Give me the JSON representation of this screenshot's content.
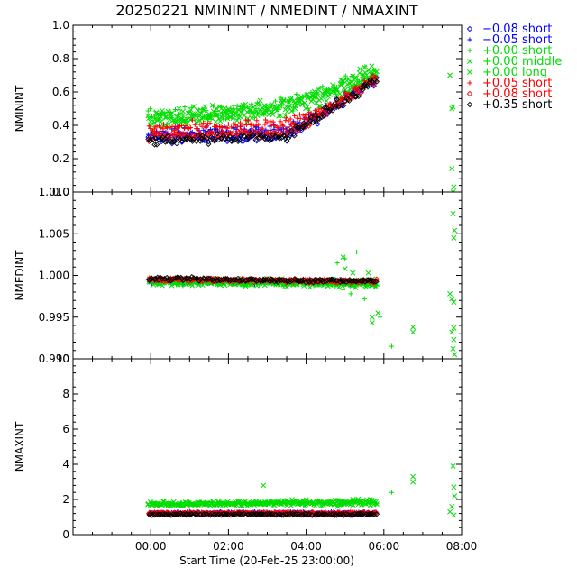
{
  "chart_data": {
    "type": "scatter",
    "title": "20250221  NMININT  /  NMEDINT  /  NMAXINT",
    "xlabel": "Start Time (20-Feb-25 23:00:00)",
    "x_unit": "hours since start time",
    "xlim": [
      -1.0,
      9.0
    ],
    "xticks": [
      {
        "value": 1.0,
        "label": "00:00"
      },
      {
        "value": 3.0,
        "label": "02:00"
      },
      {
        "value": 5.0,
        "label": "04:00"
      },
      {
        "value": 7.0,
        "label": "06:00"
      },
      {
        "value": 9.0,
        "label": "08:00"
      }
    ],
    "panels": [
      {
        "ylabel": "NMININT",
        "ylim": [
          0.0,
          1.0
        ],
        "yticks": [
          "0.0",
          "0.2",
          "0.4",
          "0.6",
          "0.8",
          "1.0"
        ],
        "ytick_values": [
          0.0,
          0.2,
          0.4,
          0.6,
          0.8,
          1.0
        ]
      },
      {
        "ylabel": "NMEDINT",
        "ylim": [
          0.99,
          1.01
        ],
        "yticks": [
          "0.990",
          "0.995",
          "1.000",
          "1.005",
          "1.010"
        ],
        "ytick_values": [
          0.99,
          0.995,
          1.0,
          1.005,
          1.01
        ]
      },
      {
        "ylabel": "NMAXINT",
        "ylim": [
          0,
          10
        ],
        "yticks": [
          "0",
          "2",
          "4",
          "6",
          "8",
          "10"
        ],
        "ytick_values": [
          0,
          2,
          4,
          6,
          8,
          10
        ]
      }
    ],
    "series": [
      {
        "name": "−0.08 short",
        "color": "#0000ff",
        "marker": "diamond",
        "panels": [
          {
            "start": 0.95,
            "end": 6.8,
            "base": [
              [
                0.95,
                0.32
              ],
              [
                4.5,
                0.34
              ],
              [
                5.3,
                0.44
              ],
              [
                6.8,
                0.68
              ]
            ],
            "noise": 0.03
          },
          {
            "start": 0.95,
            "end": 6.8,
            "base": [
              [
                0.95,
                0.9994
              ],
              [
                6.8,
                0.9992
              ]
            ],
            "noise": 0.0002
          },
          {
            "start": 0.95,
            "end": 6.8,
            "base": [
              [
                0.95,
                1.2
              ],
              [
                6.8,
                1.2
              ]
            ],
            "noise": 0.06
          }
        ]
      },
      {
        "name": "−0.05 short",
        "color": "#0000ff",
        "marker": "plus",
        "panels": [
          {
            "start": 0.95,
            "end": 6.8,
            "base": [
              [
                0.95,
                0.35
              ],
              [
                4.5,
                0.38
              ],
              [
                5.3,
                0.46
              ],
              [
                6.8,
                0.69
              ]
            ],
            "noise": 0.03
          },
          {
            "start": 0.95,
            "end": 6.8,
            "base": [
              [
                0.95,
                0.9993
              ],
              [
                6.8,
                0.9991
              ]
            ],
            "noise": 0.0003
          },
          {
            "start": 0.95,
            "end": 6.8,
            "base": [
              [
                0.95,
                1.25
              ],
              [
                6.8,
                1.25
              ]
            ],
            "noise": 0.06
          }
        ]
      },
      {
        "name": "+0.00 short",
        "color": "#00dd00",
        "marker": "plus",
        "panels": [
          {
            "start": 0.95,
            "end": 6.8,
            "base": [
              [
                0.95,
                0.45
              ],
              [
                4.5,
                0.52
              ],
              [
                5.3,
                0.58
              ],
              [
                6.8,
                0.72
              ]
            ],
            "noise": 0.05
          },
          {
            "start": 0.95,
            "end": 6.8,
            "base": [
              [
                0.95,
                0.9993
              ],
              [
                6.8,
                0.999
              ]
            ],
            "noise": 0.0004
          },
          {
            "start": 0.95,
            "end": 6.8,
            "base": [
              [
                0.95,
                1.75
              ],
              [
                6.8,
                1.85
              ]
            ],
            "noise": 0.12
          }
        ]
      },
      {
        "name": "+0.00 middle",
        "color": "#00dd00",
        "marker": "x",
        "panels": [
          {
            "start": 0.95,
            "end": 6.8,
            "base": [
              [
                0.95,
                0.43
              ],
              [
                4.5,
                0.5
              ],
              [
                5.3,
                0.57
              ],
              [
                6.8,
                0.73
              ]
            ],
            "noise": 0.05
          },
          {
            "start": 0.95,
            "end": 6.8,
            "base": [
              [
                0.95,
                0.9992
              ],
              [
                6.8,
                0.999
              ]
            ],
            "noise": 0.0004
          },
          {
            "start": 0.95,
            "end": 6.8,
            "base": [
              [
                0.95,
                1.7
              ],
              [
                6.8,
                1.8
              ]
            ],
            "noise": 0.12
          }
        ]
      },
      {
        "name": "+0.00 long",
        "color": "#00dd00",
        "marker": "x",
        "panels": [
          {
            "start": 0.95,
            "end": 6.8,
            "base": [
              [
                0.95,
                0.44
              ],
              [
                4.5,
                0.51
              ],
              [
                5.3,
                0.57
              ],
              [
                6.8,
                0.72
              ]
            ],
            "noise": 0.05
          },
          {
            "start": 0.95,
            "end": 6.8,
            "base": [
              [
                0.95,
                0.9993
              ],
              [
                6.8,
                0.9991
              ]
            ],
            "noise": 0.0004
          },
          {
            "start": 0.95,
            "end": 6.8,
            "base": [
              [
                0.95,
                1.75
              ],
              [
                6.8,
                1.9
              ]
            ],
            "noise": 0.12
          }
        ]
      },
      {
        "name": "+0.05 short",
        "color": "#ff0000",
        "marker": "plus",
        "panels": [
          {
            "start": 0.95,
            "end": 6.8,
            "base": [
              [
                0.95,
                0.38
              ],
              [
                4.5,
                0.41
              ],
              [
                5.3,
                0.48
              ],
              [
                6.8,
                0.68
              ]
            ],
            "noise": 0.03
          },
          {
            "start": 0.95,
            "end": 6.8,
            "base": [
              [
                0.95,
                0.9996
              ],
              [
                6.8,
                0.9993
              ]
            ],
            "noise": 0.0002
          },
          {
            "start": 0.95,
            "end": 6.8,
            "base": [
              [
                0.95,
                1.25
              ],
              [
                6.8,
                1.25
              ]
            ],
            "noise": 0.05
          }
        ]
      },
      {
        "name": "+0.08 short",
        "color": "#ff0000",
        "marker": "diamond",
        "panels": [
          {
            "start": 0.95,
            "end": 6.8,
            "base": [
              [
                0.95,
                0.33
              ],
              [
                4.5,
                0.36
              ],
              [
                5.3,
                0.46
              ],
              [
                6.8,
                0.68
              ]
            ],
            "noise": 0.03
          },
          {
            "start": 0.95,
            "end": 6.8,
            "base": [
              [
                0.95,
                0.9995
              ],
              [
                6.8,
                0.9993
              ]
            ],
            "noise": 0.0002
          },
          {
            "start": 0.95,
            "end": 6.8,
            "base": [
              [
                0.95,
                1.2
              ],
              [
                6.8,
                1.2
              ]
            ],
            "noise": 0.05
          }
        ]
      },
      {
        "name": "+0.35 short",
        "color": "#000000",
        "marker": "diamond",
        "panels": [
          {
            "start": 0.95,
            "end": 6.8,
            "base": [
              [
                0.95,
                0.31
              ],
              [
                4.5,
                0.33
              ],
              [
                5.3,
                0.45
              ],
              [
                6.8,
                0.67
              ]
            ],
            "noise": 0.03
          },
          {
            "start": 0.95,
            "end": 6.8,
            "base": [
              [
                0.95,
                0.9996
              ],
              [
                6.8,
                0.9993
              ]
            ],
            "noise": 0.0002
          },
          {
            "start": 0.95,
            "end": 6.8,
            "base": [
              [
                0.95,
                1.15
              ],
              [
                6.8,
                1.15
              ]
            ],
            "noise": 0.05
          }
        ]
      }
    ],
    "outliers": [
      {
        "series": 3,
        "panel": 0,
        "points": [
          [
            8.7,
            0.7
          ],
          [
            8.75,
            0.5
          ],
          [
            8.78,
            0.51
          ],
          [
            8.75,
            0.14
          ],
          [
            8.8,
            0.03
          ],
          [
            8.78,
            0.0
          ]
        ]
      },
      {
        "series": 3,
        "panel": 1,
        "points": [
          [
            8.78,
            1.0074
          ],
          [
            8.82,
            1.0054
          ],
          [
            8.8,
            1.0045
          ],
          [
            8.7,
            0.9978
          ],
          [
            8.75,
            0.9972
          ],
          [
            8.8,
            0.9968
          ],
          [
            8.75,
            0.9932
          ],
          [
            8.8,
            0.9923
          ],
          [
            8.78,
            0.9912
          ],
          [
            8.82,
            0.9905
          ],
          [
            8.8,
            0.9937
          ],
          [
            7.75,
            0.9938
          ],
          [
            7.75,
            0.9932
          ],
          [
            6.7,
            0.995
          ],
          [
            6.7,
            0.9943
          ],
          [
            6.85,
            0.9955
          ]
        ]
      },
      {
        "series": 2,
        "panel": 1,
        "points": [
          [
            7.2,
            0.9915
          ],
          [
            6.9,
            0.995
          ],
          [
            6.5,
            0.9972
          ],
          [
            6.3,
            1.0028
          ],
          [
            6.0,
            1.002
          ],
          [
            5.8,
            1.0015
          ],
          [
            5.95,
            0.9983
          ],
          [
            6.15,
            0.9978
          ]
        ]
      },
      {
        "series": 3,
        "panel": 1,
        "points": [
          [
            5.95,
            1.0022
          ],
          [
            6.0,
            1.0008
          ],
          [
            6.2,
            1.0003
          ],
          [
            6.6,
            1.0003
          ]
        ]
      },
      {
        "series": 3,
        "panel": 2,
        "points": [
          [
            8.78,
            3.9
          ],
          [
            8.8,
            2.7
          ],
          [
            8.82,
            2.2
          ],
          [
            8.75,
            1.6
          ],
          [
            8.7,
            1.3
          ],
          [
            8.8,
            1.1
          ],
          [
            7.75,
            3.3
          ],
          [
            7.75,
            3.0
          ],
          [
            3.9,
            2.8
          ]
        ]
      },
      {
        "series": 2,
        "panel": 2,
        "points": [
          [
            7.2,
            2.4
          ]
        ]
      }
    ]
  }
}
